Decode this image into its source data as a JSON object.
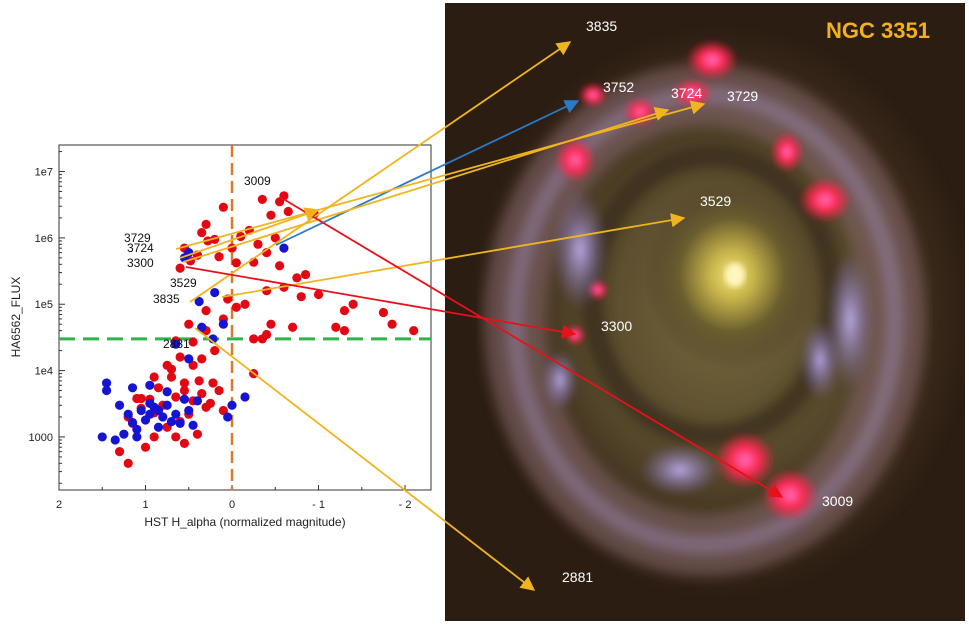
{
  "chart_data": {
    "type": "scatter",
    "xlabel": "HST H_alpha (normalized magnitude)",
    "ylabel": "HA6562_FLUX",
    "xlim": [
      2,
      -2.3
    ],
    "ylim_log10": [
      2.2,
      7.4
    ],
    "xticks": [
      {
        "value": 2,
        "label": "2"
      },
      {
        "value": 1,
        "label": "1"
      },
      {
        "value": 0,
        "label": "0"
      },
      {
        "value": -1,
        "label": "- 1"
      },
      {
        "value": -2,
        "label": "- 2"
      }
    ],
    "yticks": [
      {
        "value": 1000,
        "label": "1000"
      },
      {
        "value": 10000,
        "label": "1e4"
      },
      {
        "value": 100000,
        "label": "1e5"
      },
      {
        "value": 1000000,
        "label": "1e6"
      },
      {
        "value": 10000000,
        "label": "1e7"
      }
    ],
    "vline_x": 0,
    "hline_y": 30000,
    "colors": {
      "red": "#e30613",
      "blue": "#1414d2",
      "vline": "#e0782a",
      "hline": "#2eb34a"
    },
    "series": [
      {
        "color": "red",
        "points": [
          [
            -0.6,
            4300000
          ],
          [
            -0.55,
            3500000
          ],
          [
            -0.35,
            3800000
          ],
          [
            -0.65,
            2500000
          ],
          [
            -0.45,
            2200000
          ],
          [
            -0.95,
            2300000
          ],
          [
            0.1,
            2900000
          ],
          [
            0.3,
            1600000
          ],
          [
            0.35,
            1200000
          ],
          [
            0.28,
            900000
          ],
          [
            0.55,
            700000
          ],
          [
            0.2,
            950000
          ],
          [
            -0.2,
            1300000
          ],
          [
            -0.5,
            1000000
          ],
          [
            -0.3,
            800000
          ],
          [
            0.0,
            700000
          ],
          [
            -0.1,
            1050000
          ],
          [
            -0.4,
            600000
          ],
          [
            0.6,
            350000
          ],
          [
            0.48,
            450000
          ],
          [
            0.4,
            550000
          ],
          [
            0.15,
            520000
          ],
          [
            -0.05,
            420000
          ],
          [
            -0.25,
            430000
          ],
          [
            -0.55,
            380000
          ],
          [
            -0.75,
            250000
          ],
          [
            -0.85,
            280000
          ],
          [
            -0.6,
            180000
          ],
          [
            -0.4,
            160000
          ],
          [
            -0.8,
            130000
          ],
          [
            -1.0,
            140000
          ],
          [
            -1.4,
            100000
          ],
          [
            -1.3,
            80000
          ],
          [
            -1.75,
            75000
          ],
          [
            -1.85,
            50000
          ],
          [
            -2.1,
            40000
          ],
          [
            -1.3,
            40000
          ],
          [
            -1.2,
            45000
          ],
          [
            -0.7,
            45000
          ],
          [
            -0.45,
            50000
          ],
          [
            -0.05,
            90000
          ],
          [
            -0.15,
            100000
          ],
          [
            0.05,
            120000
          ],
          [
            0.3,
            80000
          ],
          [
            0.5,
            50000
          ],
          [
            0.1,
            60000
          ],
          [
            -0.35,
            30000
          ],
          [
            -0.4,
            35000
          ],
          [
            0.65,
            28000
          ],
          [
            0.45,
            27000
          ],
          [
            0.3,
            40000
          ],
          [
            -0.25,
            30000
          ],
          [
            0.35,
            15000
          ],
          [
            0.2,
            20000
          ],
          [
            0.45,
            12000
          ],
          [
            0.6,
            16000
          ],
          [
            0.75,
            12000
          ],
          [
            0.7,
            8000
          ],
          [
            0.55,
            6500
          ],
          [
            0.38,
            7000
          ],
          [
            0.15,
            5000
          ],
          [
            0.25,
            3200
          ],
          [
            0.1,
            2500
          ],
          [
            -0.25,
            9000
          ],
          [
            0.45,
            3500
          ],
          [
            0.35,
            4500
          ],
          [
            0.65,
            4000
          ],
          [
            0.8,
            3000
          ],
          [
            0.9,
            2300
          ],
          [
            1.05,
            2700
          ],
          [
            1.2,
            2000
          ],
          [
            0.75,
            1400
          ],
          [
            0.6,
            1700
          ],
          [
            0.9,
            1000
          ],
          [
            0.4,
            1100
          ],
          [
            0.55,
            800
          ],
          [
            1.0,
            700
          ],
          [
            1.3,
            600
          ],
          [
            1.2,
            400
          ],
          [
            0.55,
            5000
          ],
          [
            0.95,
            3700
          ],
          [
            1.1,
            3800
          ],
          [
            0.85,
            5500
          ],
          [
            0.22,
            6500
          ],
          [
            0.7,
            10500
          ],
          [
            0.9,
            8000
          ],
          [
            1.05,
            3800
          ],
          [
            0.5,
            2200
          ],
          [
            0.3,
            2800
          ],
          [
            0.65,
            1000
          ],
          [
            1.15,
            1600
          ]
        ]
      },
      {
        "color": "blue",
        "points": [
          [
            -0.6,
            700000
          ],
          [
            0.5,
            600000
          ],
          [
            0.55,
            500000
          ],
          [
            0.2,
            150000
          ],
          [
            0.38,
            110000
          ],
          [
            0.35,
            45000
          ],
          [
            0.22,
            30000
          ],
          [
            0.65,
            25000
          ],
          [
            0.1,
            50000
          ],
          [
            0.5,
            15000
          ],
          [
            1.45,
            6500
          ],
          [
            1.45,
            5000
          ],
          [
            1.15,
            5500
          ],
          [
            0.95,
            6000
          ],
          [
            0.75,
            4800
          ],
          [
            0.4,
            3500
          ],
          [
            -0.15,
            4000
          ],
          [
            0.0,
            3000
          ],
          [
            0.05,
            2000
          ],
          [
            1.3,
            3000
          ],
          [
            1.2,
            2200
          ],
          [
            1.05,
            2500
          ],
          [
            0.9,
            2800
          ],
          [
            0.95,
            3200
          ],
          [
            0.8,
            2000
          ],
          [
            1.0,
            1800
          ],
          [
            1.1,
            1300
          ],
          [
            1.25,
            1100
          ],
          [
            1.35,
            900
          ],
          [
            1.5,
            1000
          ],
          [
            0.85,
            1400
          ],
          [
            0.7,
            1700
          ],
          [
            0.65,
            2200
          ],
          [
            0.5,
            2500
          ],
          [
            0.45,
            1500
          ],
          [
            1.15,
            1650
          ],
          [
            0.95,
            2200
          ],
          [
            0.75,
            3000
          ],
          [
            0.55,
            3700
          ],
          [
            0.85,
            2500
          ],
          [
            1.1,
            1000
          ],
          [
            0.6,
            1600
          ]
        ]
      }
    ]
  },
  "annotations": [
    {
      "label": "3009",
      "x": -0.6,
      "y": 4300000
    },
    {
      "label": "3729",
      "x": -0.6,
      "y": 700000
    },
    {
      "label": "3724",
      "x": -0.45,
      "y": 500000
    },
    {
      "label": "3300",
      "x": -0.55,
      "y": 380000
    },
    {
      "label": "3529",
      "x": 0.38,
      "y": 110000
    },
    {
      "label": "3835",
      "x": 0.2,
      "y": 150000
    },
    {
      "label": "2881",
      "x": 0.22,
      "y": 30000
    }
  ],
  "image": {
    "title": "NGC 3351",
    "labels": [
      "3835",
      "3752",
      "3724",
      "3729",
      "3529",
      "3300",
      "3009",
      "2881"
    ]
  }
}
